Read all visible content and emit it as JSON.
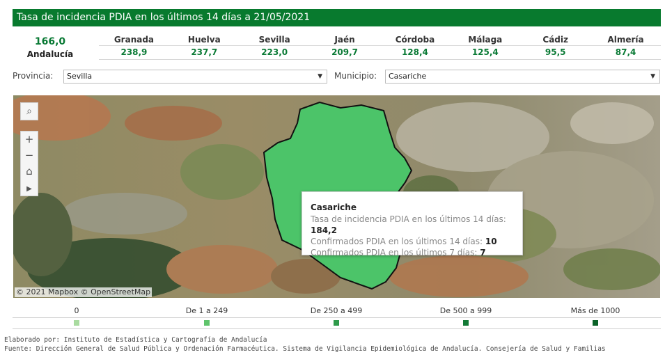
{
  "header": {
    "title": "Tasa de incidencia PDIA en los últimos 14 días a 21/05/2021"
  },
  "summary": {
    "total_value": "166,0",
    "total_label": "Andalucía"
  },
  "provinces": [
    {
      "name": "Granada",
      "value": "238,9"
    },
    {
      "name": "Huelva",
      "value": "237,7"
    },
    {
      "name": "Sevilla",
      "value": "223,0"
    },
    {
      "name": "Jaén",
      "value": "209,7"
    },
    {
      "name": "Córdoba",
      "value": "128,4"
    },
    {
      "name": "Málaga",
      "value": "125,4"
    },
    {
      "name": "Cádiz",
      "value": "95,5"
    },
    {
      "name": "Almería",
      "value": "87,4"
    }
  ],
  "filters": {
    "provincia_label": "Provincia:",
    "provincia_value": "Sevilla",
    "municipio_label": "Municipio:",
    "municipio_value": "Casariche"
  },
  "map": {
    "attribution": "© 2021 Mapbox © OpenStreetMap",
    "controls": [
      "search-icon",
      "zoom-in-icon",
      "zoom-out-icon",
      "home-icon",
      "play-icon"
    ],
    "highlight_color": "#4cc469"
  },
  "tooltip": {
    "title": "Casariche",
    "line1_label": "Tasa de incidencia PDIA en los últimos 14 días:",
    "line1_value": "184,2",
    "line2_label": "Confirmados PDIA en los últimos 14 días:",
    "line2_value": "10",
    "line3_label": "Confirmados PDIA en los últimos 7 días:",
    "line3_value": "7"
  },
  "legend": [
    {
      "label": "0",
      "color": "#a9dba0"
    },
    {
      "label": "De 1 a 249",
      "color": "#5fc46c"
    },
    {
      "label": "De 250 a 499",
      "color": "#2e9a4a"
    },
    {
      "label": "De 500 a 999",
      "color": "#137a36"
    },
    {
      "label": "Más de 1000",
      "color": "#0a6228"
    }
  ],
  "footer": {
    "line1": "Elaborado por: Instituto de Estadística y Cartografía de Andalucía",
    "line2": "Fuente: Dirección General de Salud Pública y Ordenación Farmacéutica. Sistema de Vigilancia Epidemiológica de Andalucía. Consejería de Salud y Familias"
  }
}
